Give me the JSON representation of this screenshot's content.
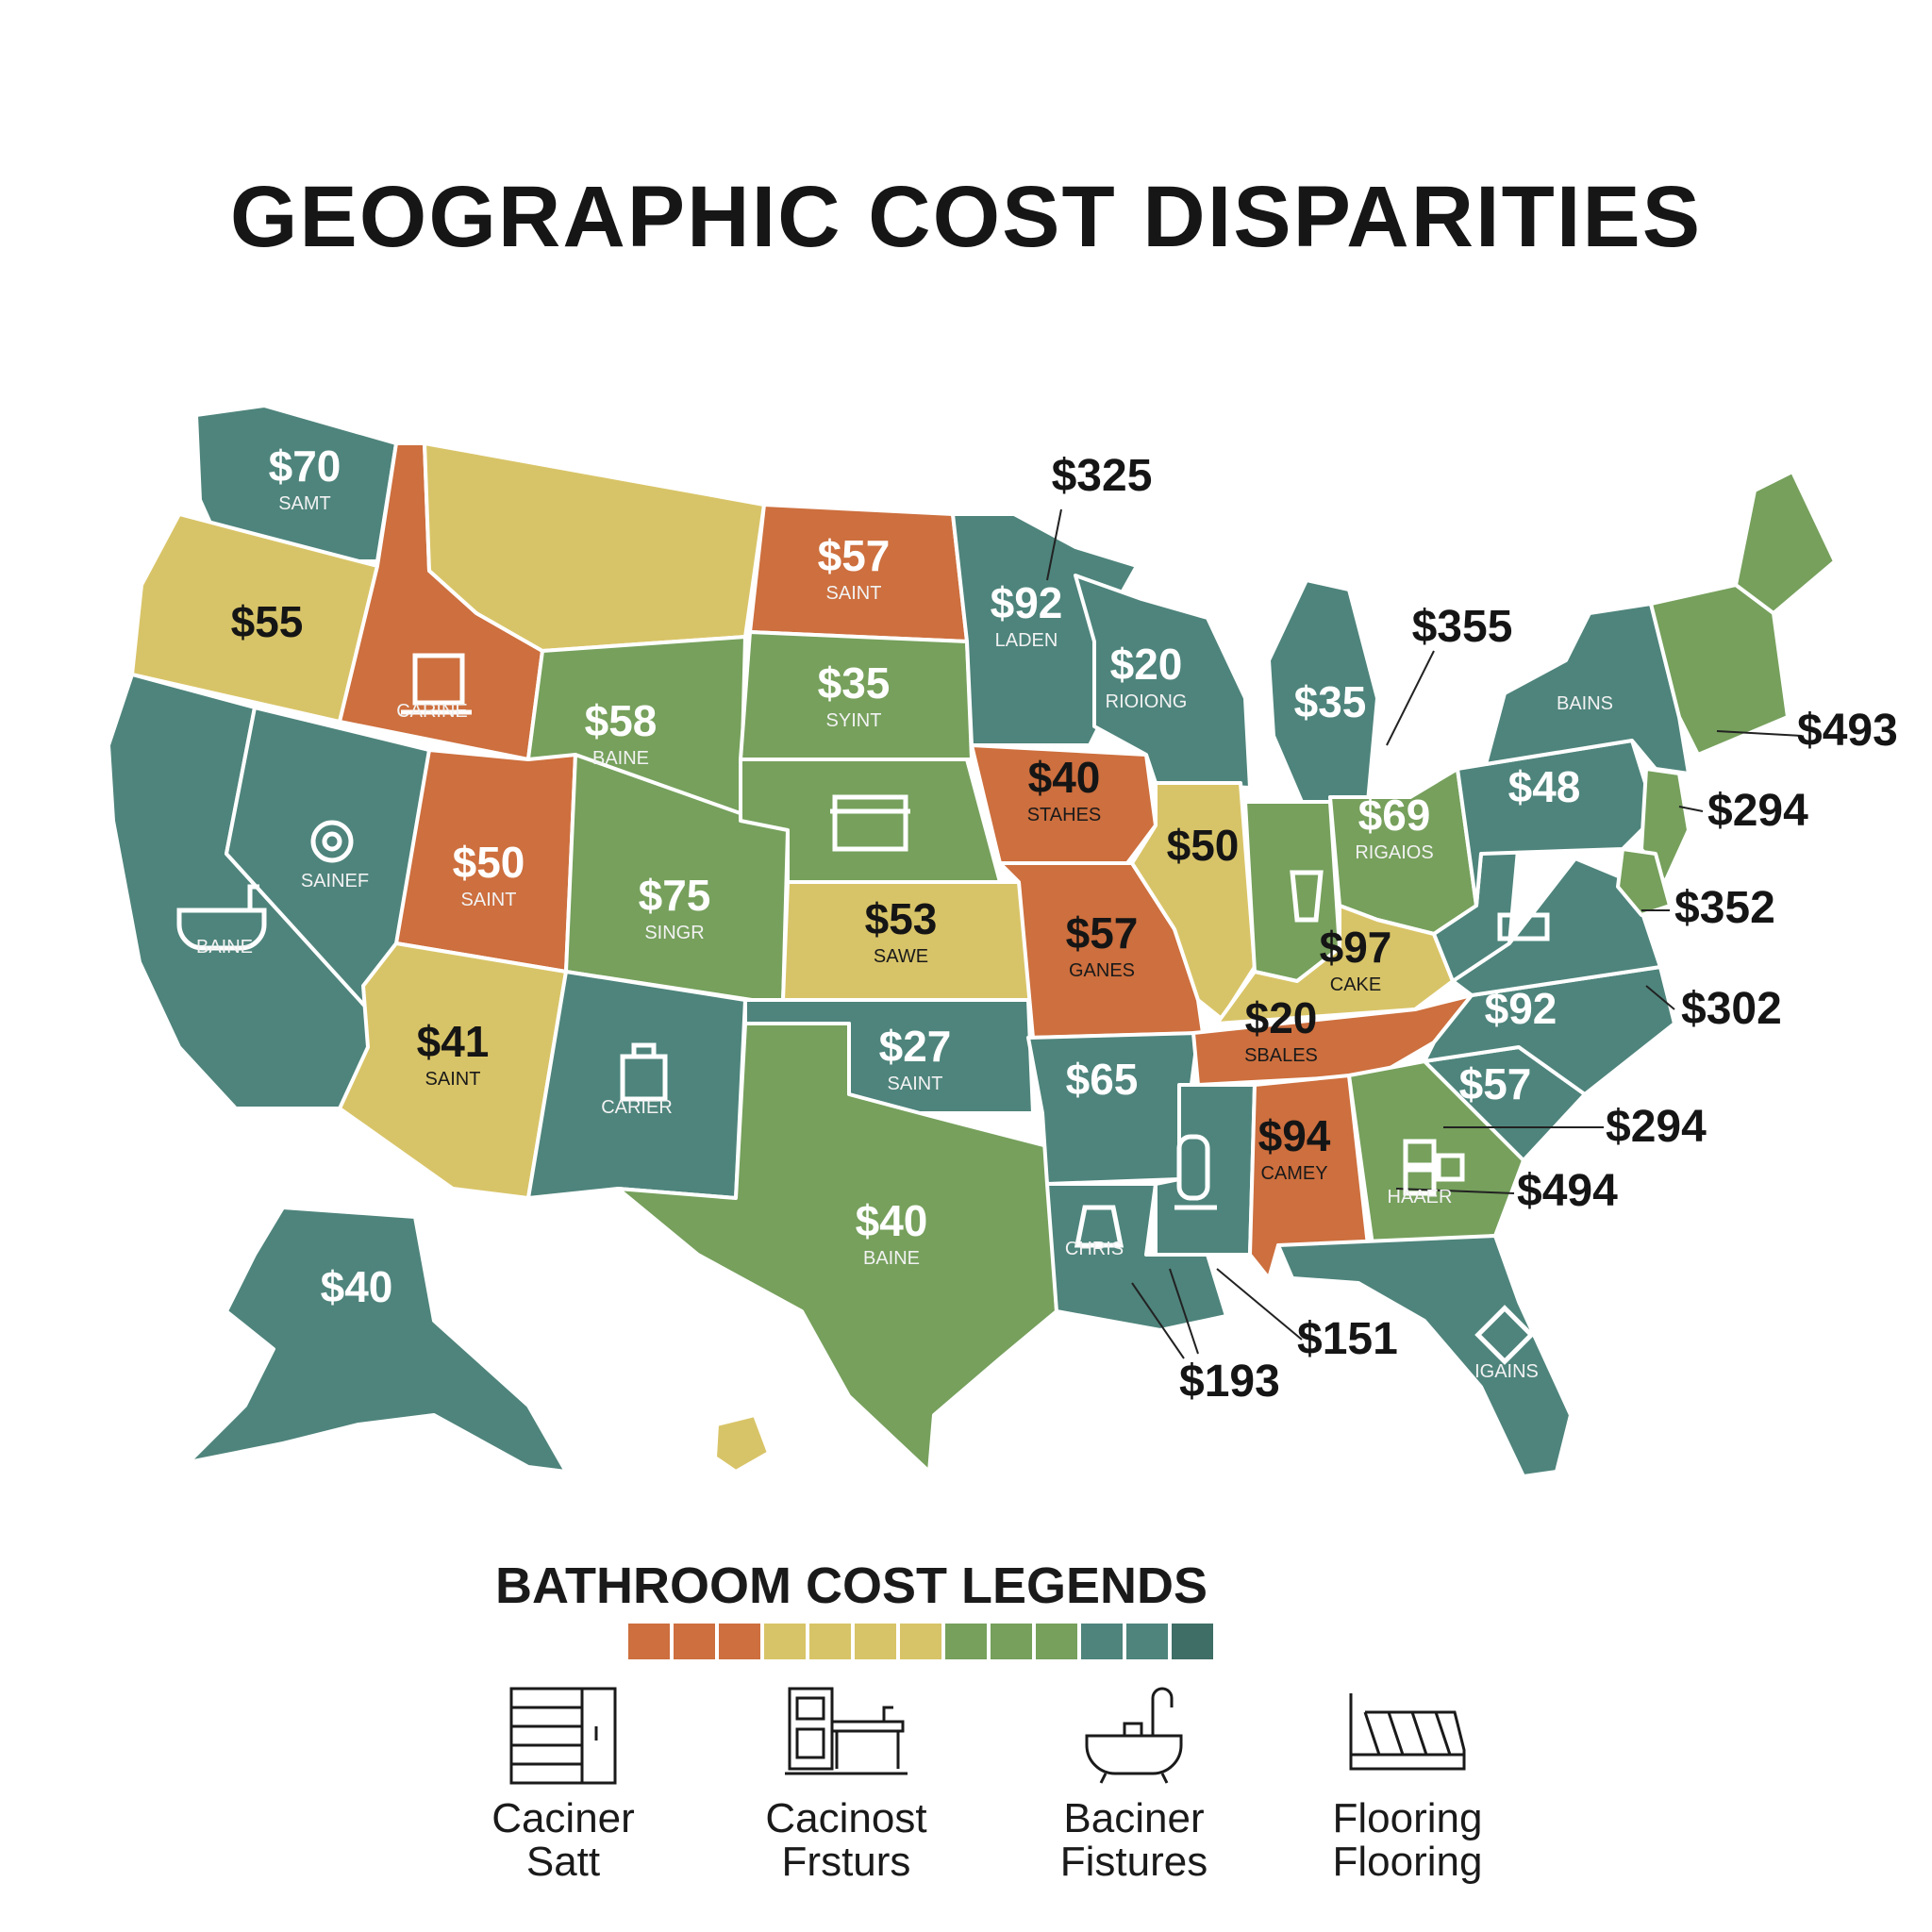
{
  "title": "GEOGRAPHIC COST DISPARITIES",
  "colors": {
    "teal": "#4e847c",
    "green": "#76a05c",
    "yellow": "#d8c468",
    "orange": "#cd6f3e",
    "dark_teal": "#3f6e66"
  },
  "states": [
    {
      "id": "WA",
      "color": "teal",
      "price": "$70",
      "label": "SAMT"
    },
    {
      "id": "OR",
      "color": "yellow",
      "price": "$55",
      "label": ""
    },
    {
      "id": "CA",
      "color": "teal",
      "price": "",
      "label": "BAINE"
    },
    {
      "id": "ID",
      "color": "orange",
      "price": "",
      "label": "CARINE"
    },
    {
      "id": "NV",
      "color": "teal",
      "price": "",
      "label": "SAINEF"
    },
    {
      "id": "MT",
      "color": "yellow",
      "price": "",
      "label": ""
    },
    {
      "id": "WY",
      "color": "green",
      "price": "$58",
      "label": "BAINE"
    },
    {
      "id": "UT",
      "color": "orange",
      "price": "$50",
      "label": "SAINT"
    },
    {
      "id": "AZ",
      "color": "yellow",
      "price": "$41",
      "label": "SAINT"
    },
    {
      "id": "CO",
      "color": "green",
      "price": "$75",
      "label": "SINGR"
    },
    {
      "id": "NM",
      "color": "teal",
      "price": "",
      "label": "CARIER"
    },
    {
      "id": "ND",
      "color": "orange",
      "price": "$57",
      "label": "SAINT"
    },
    {
      "id": "SD",
      "color": "green",
      "price": "$35",
      "label": "SYINT"
    },
    {
      "id": "NE",
      "color": "green",
      "price": "",
      "label": ""
    },
    {
      "id": "KS",
      "color": "yellow",
      "price": "$53",
      "label": "SAWE"
    },
    {
      "id": "OK",
      "color": "teal",
      "price": "$27",
      "label": "SAINT"
    },
    {
      "id": "TX",
      "color": "green",
      "price": "$40",
      "label": "BAINE"
    },
    {
      "id": "MN",
      "color": "teal",
      "price": "$92",
      "label": "LADEN"
    },
    {
      "id": "IA",
      "color": "orange",
      "price": "$40",
      "label": "STAHES"
    },
    {
      "id": "MO",
      "color": "orange",
      "price": "$57",
      "label": "GANES"
    },
    {
      "id": "AR",
      "color": "teal",
      "price": "$65",
      "label": ""
    },
    {
      "id": "LA",
      "color": "teal",
      "price": "",
      "label": "CHRIS"
    },
    {
      "id": "WI",
      "color": "teal",
      "price": "$20",
      "label": "RIOIONG"
    },
    {
      "id": "IL",
      "color": "yellow",
      "price": "$50",
      "label": ""
    },
    {
      "id": "MI",
      "color": "teal",
      "price": "$35",
      "label": ""
    },
    {
      "id": "IN",
      "color": "green",
      "price": "",
      "label": ""
    },
    {
      "id": "OH",
      "color": "green",
      "price": "$69",
      "label": "RIGAIOS"
    },
    {
      "id": "KY",
      "color": "yellow",
      "price": "$97",
      "label": "CAKE"
    },
    {
      "id": "TN",
      "color": "orange",
      "price": "$20",
      "label": "SBALES"
    },
    {
      "id": "MS",
      "color": "teal",
      "price": "",
      "label": ""
    },
    {
      "id": "AL",
      "color": "orange",
      "price": "$94",
      "label": "CAMEY"
    },
    {
      "id": "GA",
      "color": "green",
      "price": "",
      "label": "HAAER"
    },
    {
      "id": "FL",
      "color": "teal",
      "price": "",
      "label": "IGAINS"
    },
    {
      "id": "SC",
      "color": "teal",
      "price": "$57",
      "label": ""
    },
    {
      "id": "NC",
      "color": "teal",
      "price": "$92",
      "label": ""
    },
    {
      "id": "VA",
      "color": "teal",
      "price": "",
      "label": ""
    },
    {
      "id": "WV",
      "color": "teal",
      "price": "",
      "label": ""
    },
    {
      "id": "PA",
      "color": "teal",
      "price": "$48",
      "label": ""
    },
    {
      "id": "NY",
      "color": "teal",
      "price": "",
      "label": "BAINS"
    },
    {
      "id": "NE_ENG",
      "color": "green",
      "price": "",
      "label": ""
    },
    {
      "id": "ME",
      "color": "green",
      "price": "",
      "label": ""
    },
    {
      "id": "NJ",
      "color": "green",
      "price": "",
      "label": ""
    },
    {
      "id": "MD",
      "color": "green",
      "price": "",
      "label": ""
    },
    {
      "id": "AK",
      "color": "teal",
      "price": "$40",
      "label": ""
    },
    {
      "id": "HI",
      "color": "yellow",
      "price": "",
      "label": ""
    }
  ],
  "callouts": [
    {
      "id": "c325",
      "price": "$325"
    },
    {
      "id": "c355",
      "price": "$355"
    },
    {
      "id": "c493",
      "price": "$493"
    },
    {
      "id": "c294a",
      "price": "$294"
    },
    {
      "id": "c352",
      "price": "$352"
    },
    {
      "id": "c302",
      "price": "$302"
    },
    {
      "id": "c294b",
      "price": "$294"
    },
    {
      "id": "c494",
      "price": "$494"
    },
    {
      "id": "c151",
      "price": "$151"
    },
    {
      "id": "c193",
      "price": "$193"
    }
  ],
  "legend": {
    "title": "BATHROOM COST LEGENDS",
    "swatches": [
      "#cd6f3e",
      "#cd6f3e",
      "#cd6f3e",
      "#d8c468",
      "#d8c468",
      "#d8c468",
      "#d8c468",
      "#76a05c",
      "#76a05c",
      "#76a05c",
      "#4e847c",
      "#4e847c",
      "#3f6e66"
    ],
    "items": [
      {
        "icon": "cabinet-icon",
        "line1": "Caciner",
        "line2": "Satt"
      },
      {
        "icon": "vanity-icon",
        "line1": "Cacinost",
        "line2": "Frsturs"
      },
      {
        "icon": "bathtub-icon",
        "line1": "Baciner",
        "line2": "Fistures"
      },
      {
        "icon": "flooring-icon",
        "line1": "Flooring",
        "line2": "Flooring"
      }
    ]
  }
}
